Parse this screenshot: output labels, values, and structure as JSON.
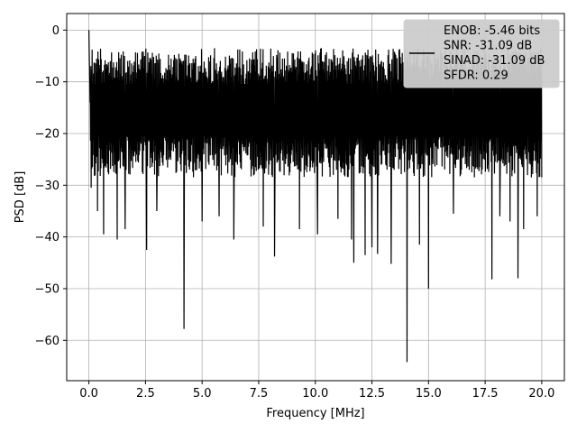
{
  "chart_data": {
    "type": "line",
    "xlabel": "Frequency [MHz]",
    "ylabel": "PSD [dB]",
    "xlim": [
      -0.98,
      21.0
    ],
    "ylim": [
      -67.8,
      3.2
    ],
    "xticks": [
      0.0,
      2.5,
      5.0,
      7.5,
      10.0,
      12.5,
      15.0,
      17.5,
      20.0
    ],
    "xtick_labels": [
      "0.0",
      "2.5",
      "5.0",
      "7.5",
      "10.0",
      "12.5",
      "15.0",
      "17.5",
      "20.0"
    ],
    "yticks": [
      0,
      -10,
      -20,
      -30,
      -40,
      -50,
      -60
    ],
    "ytick_labels": [
      "0",
      "−10",
      "−20",
      "−30",
      "−40",
      "−50",
      "−60"
    ],
    "grid": true,
    "legend_position": "top-right",
    "line_color": "#000000",
    "legend": {
      "lines": [
        "ENOB: -5.46 bits",
        "SNR: -31.09 dB",
        "SINAD: -31.09 dB",
        "SFDR: 0.29"
      ]
    },
    "series": [
      {
        "x_range": [
          0.0,
          20.0
        ],
        "band": {
          "upper": -3.5,
          "lower": -26.5
        },
        "peaks": [
          {
            "x": 0.0,
            "y": 0.0
          },
          {
            "x": 0.02,
            "y": -6.0
          },
          {
            "x": 0.05,
            "y": -14.0
          }
        ],
        "dips": [
          {
            "x": 0.1,
            "y": -30.5
          },
          {
            "x": 0.38,
            "y": -35.0
          },
          {
            "x": 0.65,
            "y": -39.5
          },
          {
            "x": 1.25,
            "y": -40.5
          },
          {
            "x": 1.6,
            "y": -38.5
          },
          {
            "x": 2.55,
            "y": -42.5
          },
          {
            "x": 3.0,
            "y": -35.0
          },
          {
            "x": 4.2,
            "y": -57.8
          },
          {
            "x": 5.0,
            "y": -37.0
          },
          {
            "x": 5.75,
            "y": -36.0
          },
          {
            "x": 6.4,
            "y": -40.5
          },
          {
            "x": 7.7,
            "y": -38.0
          },
          {
            "x": 8.2,
            "y": -43.8
          },
          {
            "x": 9.3,
            "y": -38.5
          },
          {
            "x": 10.1,
            "y": -39.5
          },
          {
            "x": 11.0,
            "y": -36.5
          },
          {
            "x": 11.6,
            "y": -40.5
          },
          {
            "x": 11.7,
            "y": -45.0
          },
          {
            "x": 12.2,
            "y": -43.5
          },
          {
            "x": 12.5,
            "y": -42.0
          },
          {
            "x": 12.75,
            "y": -43.3
          },
          {
            "x": 13.35,
            "y": -45.2
          },
          {
            "x": 14.05,
            "y": -64.2
          },
          {
            "x": 14.6,
            "y": -41.5
          },
          {
            "x": 15.0,
            "y": -50.0
          },
          {
            "x": 16.1,
            "y": -35.5
          },
          {
            "x": 17.8,
            "y": -48.2
          },
          {
            "x": 18.15,
            "y": -36.0
          },
          {
            "x": 18.6,
            "y": -37.0
          },
          {
            "x": 18.95,
            "y": -48.0
          },
          {
            "x": 19.2,
            "y": -38.5
          },
          {
            "x": 19.8,
            "y": -36.0
          }
        ]
      }
    ]
  }
}
